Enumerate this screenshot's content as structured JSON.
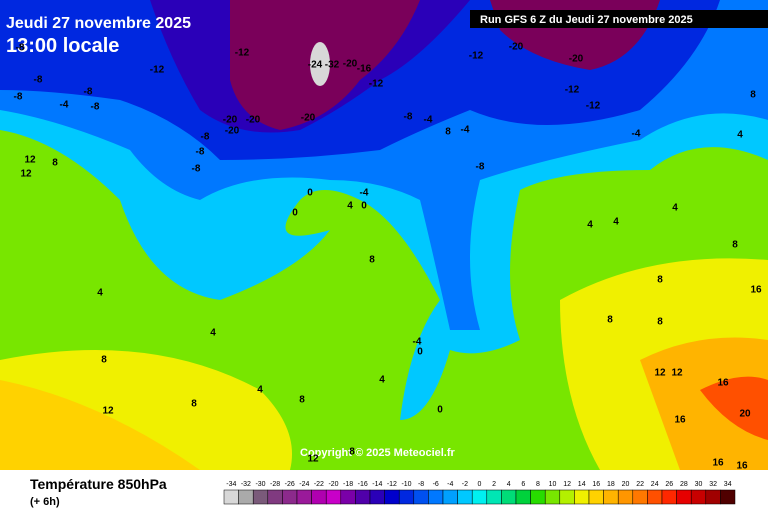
{
  "header": {
    "date": "Jeudi 27 novembre 2025",
    "time": "13:00 locale",
    "run": "Run GFS 6 Z du Jeudi 27 novembre 2025"
  },
  "copyright": "Copyright © 2025 Meteociel.fr",
  "footer": {
    "title": "Température 850hPa",
    "step": "(+ 6h)"
  },
  "legend": {
    "values": [
      -34,
      -32,
      -30,
      -28,
      -26,
      -24,
      -22,
      -20,
      -18,
      -16,
      -14,
      -12,
      -10,
      -8,
      -6,
      -4,
      -2,
      0,
      2,
      4,
      6,
      8,
      10,
      12,
      14,
      16,
      18,
      20,
      22,
      24,
      26,
      28,
      30,
      32,
      34
    ],
    "colors": [
      "#d8d8d8",
      "#aaaaaa",
      "#7a5a7a",
      "#803a80",
      "#8c2a8c",
      "#9a1a9a",
      "#b000b0",
      "#c800c8",
      "#7a00a8",
      "#5000aa",
      "#2a00b8",
      "#0000cc",
      "#0028e0",
      "#0050f0",
      "#0078ff",
      "#00a0ff",
      "#00c8ff",
      "#00f0f0",
      "#00e6b4",
      "#00dc78",
      "#00d23c",
      "#28dc00",
      "#78e600",
      "#b4f000",
      "#f0f000",
      "#ffd200",
      "#ffb400",
      "#ff9600",
      "#ff7800",
      "#ff5000",
      "#ff2800",
      "#e60000",
      "#c80000",
      "#a00000",
      "#500000"
    ]
  },
  "map_labels": [
    -8,
    -8,
    -8,
    -4,
    -8,
    -8,
    -12,
    -12,
    -20,
    -20,
    -20,
    -20,
    -24,
    -32,
    -20,
    -16,
    -12,
    -8,
    -8,
    -8,
    -8,
    -4,
    -12,
    -20,
    -20,
    -12,
    -12,
    -4,
    -4,
    -8,
    8,
    0,
    0,
    -4,
    4,
    0,
    12,
    8,
    12,
    8,
    4,
    8,
    -4,
    0,
    0,
    4,
    4,
    8,
    8,
    12,
    4,
    4,
    8,
    8,
    12,
    12,
    16,
    16,
    20,
    16,
    16,
    12,
    8,
    8,
    8,
    4,
    4,
    4,
    8,
    16
  ]
}
